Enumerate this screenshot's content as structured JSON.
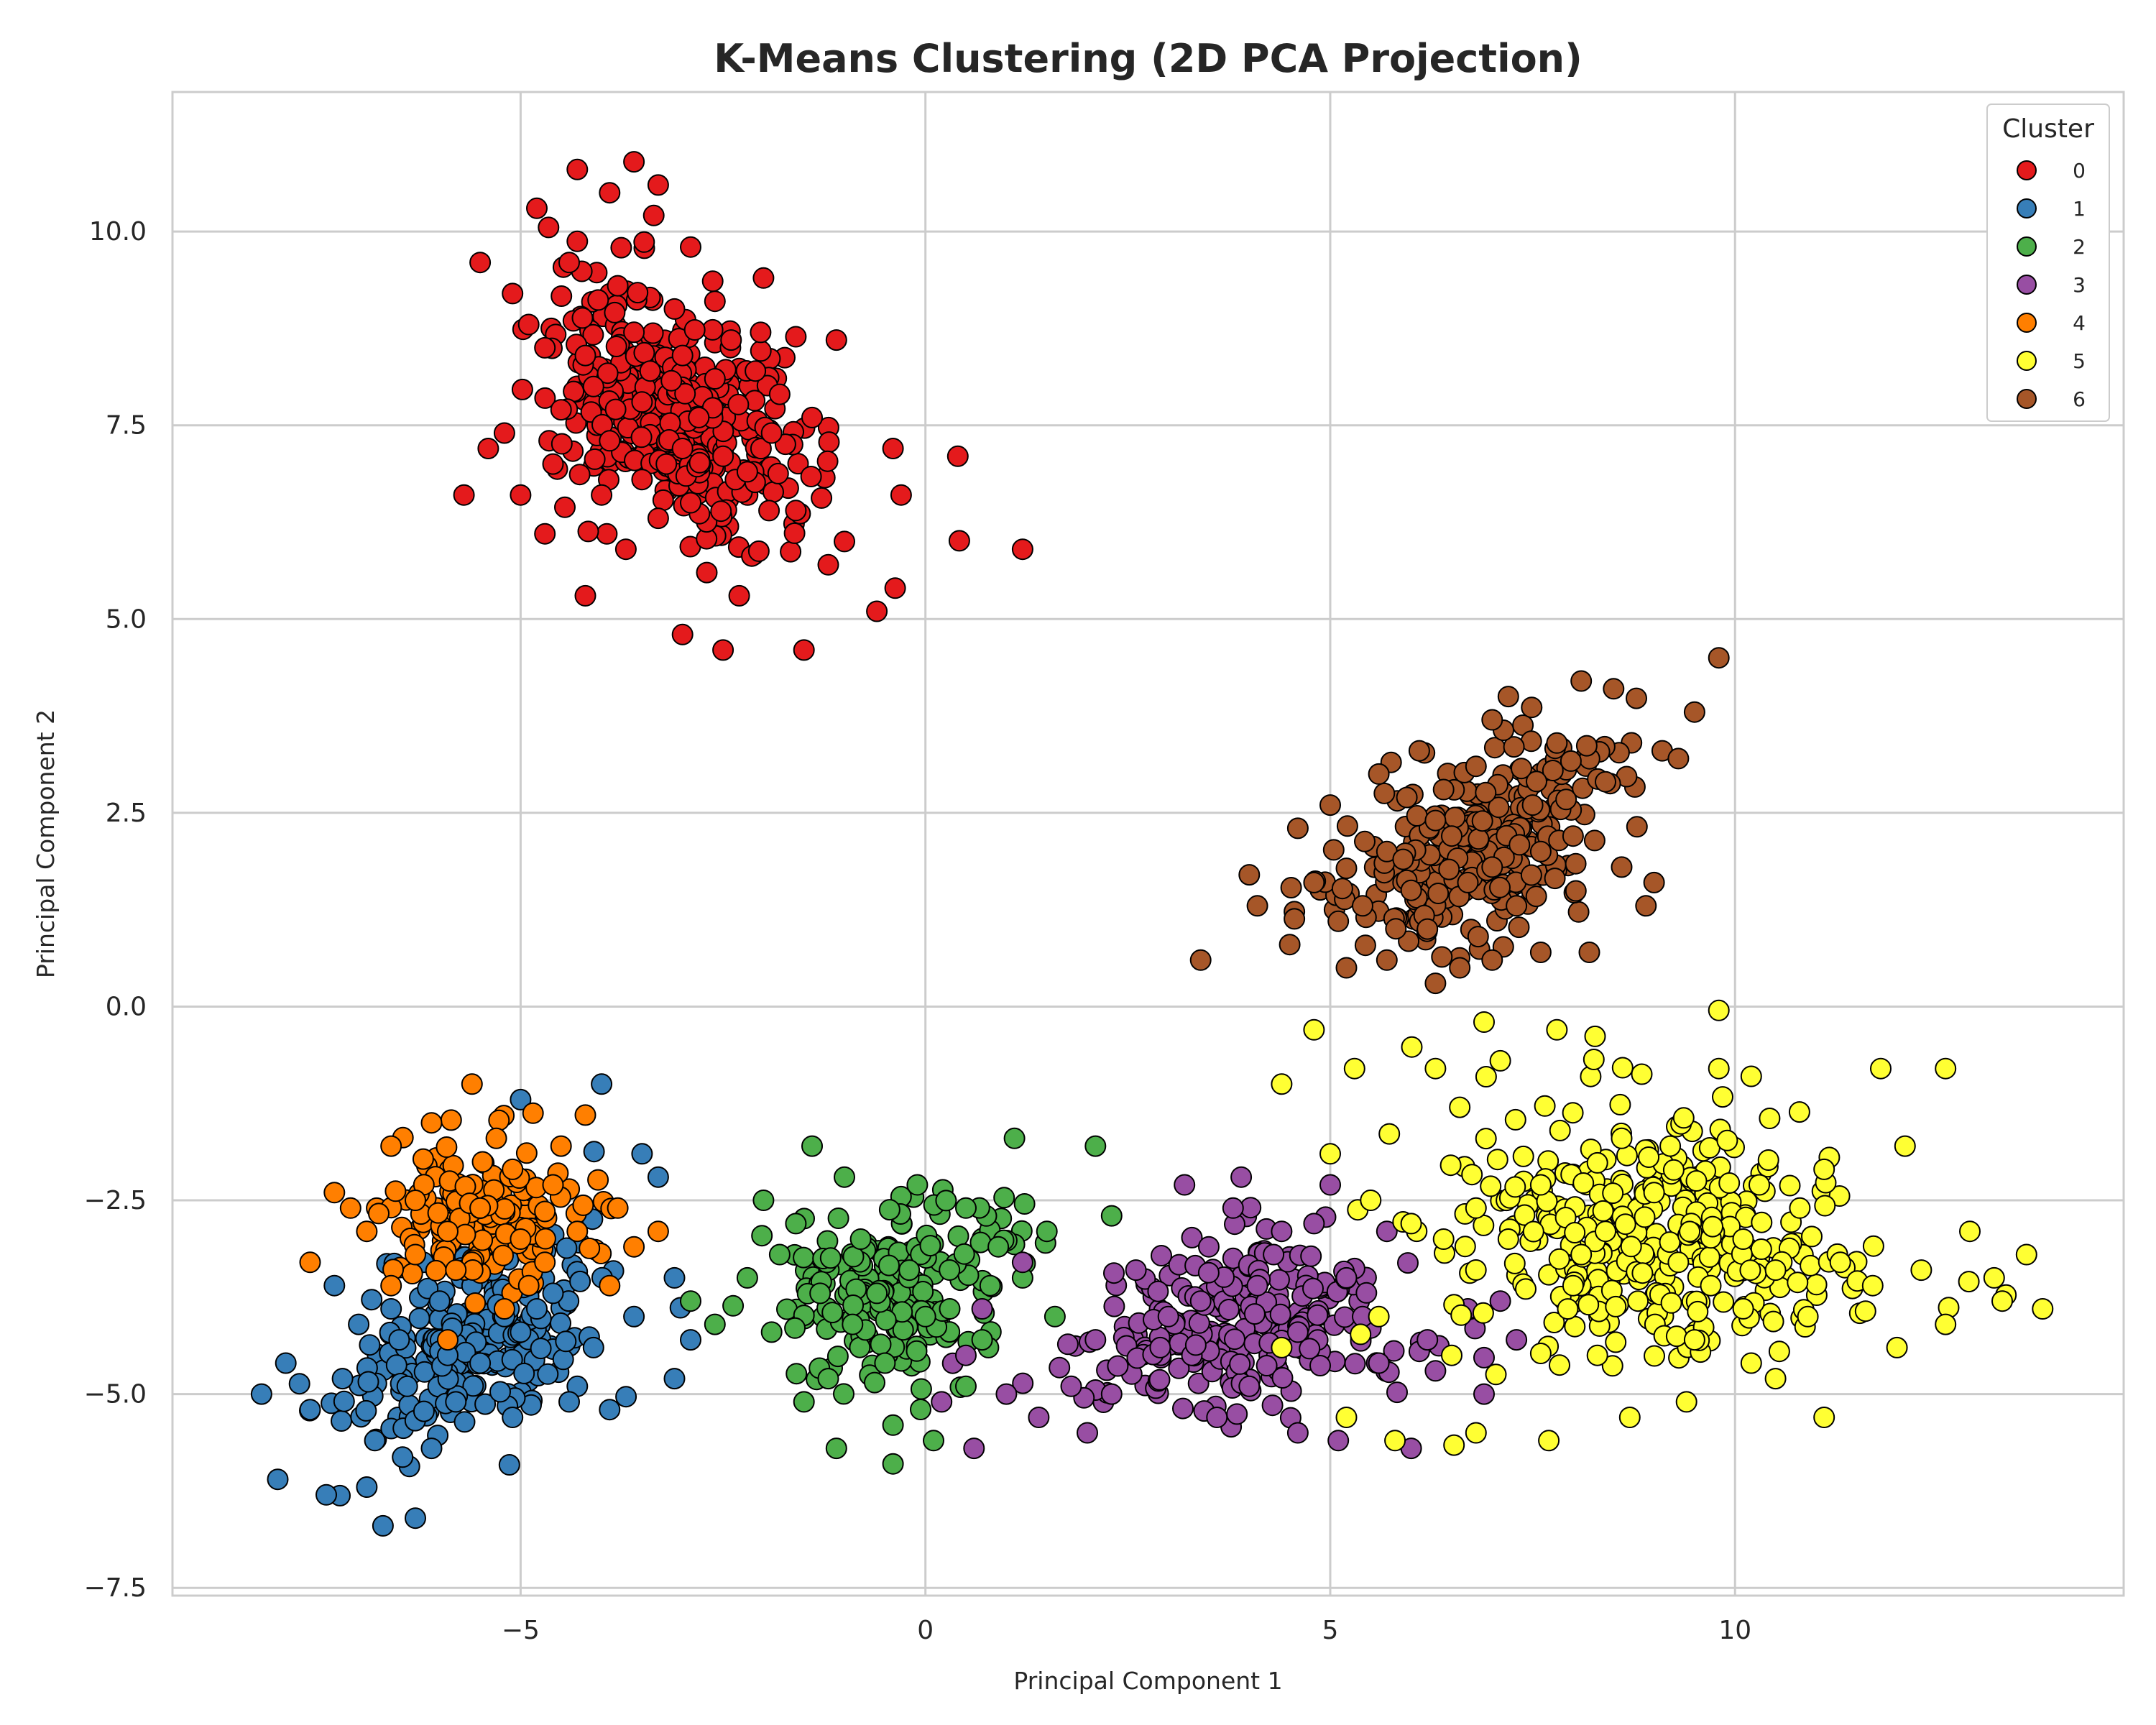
{
  "chart_data": {
    "type": "scatter",
    "title": "K-Means Clustering (2D PCA Projection)",
    "xlabel": "Principal Component 1",
    "ylabel": "Principal Component 2",
    "xlim": [
      -9.3,
      14.8
    ],
    "ylim": [
      -7.6,
      11.8
    ],
    "xticks": [
      -5,
      0,
      5,
      10
    ],
    "xtick_labels": [
      "−5",
      "0",
      "5",
      "10"
    ],
    "yticks": [
      -7.5,
      -5.0,
      -2.5,
      0.0,
      2.5,
      5.0,
      7.5,
      10.0
    ],
    "ytick_labels": [
      "−7.5",
      "−5.0",
      "−2.5",
      "0.0",
      "2.5",
      "5.0",
      "7.5",
      "10.0"
    ],
    "grid": true,
    "legend": {
      "title": "Cluster",
      "placement": "top-right"
    },
    "series": [
      {
        "name": "0",
        "color": "#e41a1c",
        "points": [
          [
            -3.5,
            7.8
          ],
          [
            -4.2,
            8.4
          ],
          [
            -3.0,
            7.2
          ],
          [
            -2.6,
            8.1
          ],
          [
            -4.6,
            7.0
          ],
          [
            -3.8,
            9.3
          ],
          [
            -2.2,
            6.9
          ],
          [
            -4.9,
            8.8
          ],
          [
            -3.3,
            6.3
          ],
          [
            -2.8,
            7.6
          ],
          [
            -4.0,
            6.6
          ],
          [
            -3.6,
            8.7
          ],
          [
            -5.2,
            7.4
          ],
          [
            -2.4,
            8.6
          ],
          [
            -3.1,
            9.0
          ],
          [
            -4.4,
            9.6
          ],
          [
            -1.9,
            7.4
          ],
          [
            -3.9,
            10.5
          ],
          [
            -3.3,
            10.6
          ],
          [
            -4.3,
            10.8
          ],
          [
            -3.6,
            10.9
          ],
          [
            -2.9,
            9.8
          ],
          [
            -4.8,
            10.3
          ],
          [
            -5.5,
            9.6
          ],
          [
            -5.1,
            9.2
          ],
          [
            -5.7,
            6.6
          ],
          [
            -5.4,
            7.2
          ],
          [
            -4.7,
            6.1
          ],
          [
            -4.2,
            5.3
          ],
          [
            -3.0,
            4.8
          ],
          [
            -2.5,
            4.6
          ],
          [
            -1.5,
            4.6
          ],
          [
            -1.0,
            6.0
          ],
          [
            -0.6,
            5.1
          ],
          [
            -0.4,
            7.2
          ],
          [
            -0.3,
            6.6
          ],
          [
            0.4,
            7.1
          ],
          [
            1.2,
            5.9
          ],
          [
            -1.1,
            8.6
          ],
          [
            -1.8,
            7.9
          ],
          [
            -2.0,
            9.4
          ],
          [
            -3.7,
            5.9
          ],
          [
            -2.7,
            5.6
          ],
          [
            -1.6,
            6.4
          ],
          [
            -3.4,
            8.2
          ],
          [
            -2.1,
            8.2
          ],
          [
            -4.5,
            7.7
          ],
          [
            -3.2,
            7.0
          ],
          [
            -2.5,
            7.1
          ],
          [
            -3.9,
            7.3
          ],
          [
            -1.4,
            7.6
          ],
          [
            -2.9,
            6.5
          ],
          [
            -4.1,
            8.0
          ],
          [
            -3.5,
            6.8
          ],
          [
            -2.3,
            5.3
          ],
          [
            -1.2,
            5.7
          ],
          [
            -4.7,
            8.5
          ],
          [
            -5.0,
            6.6
          ],
          [
            -3.0,
            8.4
          ],
          [
            -2.6,
            9.1
          ]
        ]
      },
      {
        "name": "1",
        "color": "#377eb8",
        "points": [
          [
            -6.5,
            -4.3
          ],
          [
            -7.2,
            -4.8
          ],
          [
            -6.0,
            -3.8
          ],
          [
            -5.5,
            -4.6
          ],
          [
            -7.6,
            -5.2
          ],
          [
            -6.8,
            -5.6
          ],
          [
            -5.0,
            -4.2
          ],
          [
            -6.2,
            -3.3
          ],
          [
            -4.6,
            -3.7
          ],
          [
            -7.9,
            -4.6
          ],
          [
            -5.8,
            -5.1
          ],
          [
            -6.9,
            -6.2
          ],
          [
            -4.3,
            -4.9
          ],
          [
            -3.6,
            -4.0
          ],
          [
            -3.1,
            -3.5
          ],
          [
            -3.3,
            -2.2
          ],
          [
            -3.5,
            -1.9
          ],
          [
            -4.0,
            -1.0
          ],
          [
            -5.0,
            -1.2
          ],
          [
            -8.2,
            -5.0
          ],
          [
            -8.0,
            -6.1
          ],
          [
            -6.7,
            -6.7
          ],
          [
            -6.3,
            -6.6
          ],
          [
            -7.4,
            -6.3
          ],
          [
            -5.1,
            -5.3
          ],
          [
            -4.4,
            -5.1
          ],
          [
            -3.9,
            -5.2
          ],
          [
            -3.1,
            -4.8
          ],
          [
            -2.9,
            -4.3
          ],
          [
            -5.6,
            -3.6
          ],
          [
            -6.4,
            -4.9
          ],
          [
            -7.0,
            -4.1
          ],
          [
            -5.3,
            -3.0
          ],
          [
            -4.8,
            -3.9
          ],
          [
            -6.1,
            -5.7
          ],
          [
            -7.3,
            -3.6
          ],
          [
            -4.1,
            -4.4
          ],
          [
            -5.9,
            -4.5
          ],
          [
            -6.6,
            -3.9
          ],
          [
            -5.2,
            -4.0
          ]
        ]
      },
      {
        "name": "2",
        "color": "#4daf4a",
        "points": [
          [
            -0.2,
            -3.4
          ],
          [
            0.3,
            -3.9
          ],
          [
            -0.8,
            -3.0
          ],
          [
            -1.3,
            -3.7
          ],
          [
            0.7,
            -4.3
          ],
          [
            -0.5,
            -4.6
          ],
          [
            0.9,
            -3.1
          ],
          [
            -1.6,
            -2.8
          ],
          [
            -0.1,
            -2.3
          ],
          [
            1.2,
            -3.5
          ],
          [
            -1.9,
            -4.2
          ],
          [
            -2.2,
            -3.5
          ],
          [
            -2.0,
            -2.5
          ],
          [
            -1.4,
            -1.8
          ],
          [
            1.1,
            -1.7
          ],
          [
            2.1,
            -1.8
          ],
          [
            2.3,
            -2.7
          ],
          [
            1.6,
            -4.0
          ],
          [
            0.5,
            -4.9
          ],
          [
            -0.4,
            -5.4
          ],
          [
            -1.1,
            -5.7
          ],
          [
            -0.4,
            -5.9
          ],
          [
            -1.5,
            -5.1
          ],
          [
            0.1,
            -5.6
          ],
          [
            -2.6,
            -4.1
          ],
          [
            -2.9,
            -3.8
          ],
          [
            -1.0,
            -2.2
          ],
          [
            0.5,
            -2.6
          ],
          [
            -0.6,
            -3.7
          ],
          [
            1.5,
            -2.9
          ],
          [
            -1.8,
            -3.2
          ],
          [
            0.0,
            -4.0
          ],
          [
            -0.9,
            -4.1
          ],
          [
            0.8,
            -3.6
          ],
          [
            -1.2,
            -4.8
          ]
        ]
      },
      {
        "name": "3",
        "color": "#984ea3",
        "points": [
          [
            4.1,
            -3.6
          ],
          [
            3.5,
            -3.1
          ],
          [
            4.6,
            -4.2
          ],
          [
            3.0,
            -4.0
          ],
          [
            5.2,
            -3.5
          ],
          [
            3.8,
            -2.6
          ],
          [
            4.4,
            -2.9
          ],
          [
            2.6,
            -3.4
          ],
          [
            5.6,
            -4.6
          ],
          [
            4.0,
            -4.9
          ],
          [
            6.2,
            -4.3
          ],
          [
            6.7,
            -3.9
          ],
          [
            6.3,
            -4.7
          ],
          [
            6.9,
            -5.0
          ],
          [
            5.1,
            -5.6
          ],
          [
            4.6,
            -5.5
          ],
          [
            3.6,
            -5.3
          ],
          [
            2.3,
            -5.0
          ],
          [
            1.8,
            -4.9
          ],
          [
            1.4,
            -5.3
          ],
          [
            1.0,
            -5.0
          ],
          [
            0.6,
            -5.7
          ],
          [
            0.2,
            -5.1
          ],
          [
            0.5,
            -4.5
          ],
          [
            0.7,
            -3.9
          ],
          [
            2.1,
            -4.3
          ],
          [
            2.9,
            -4.4
          ],
          [
            3.2,
            -2.3
          ],
          [
            3.9,
            -2.2
          ],
          [
            4.8,
            -2.8
          ],
          [
            5.0,
            -2.3
          ],
          [
            5.7,
            -2.9
          ],
          [
            7.1,
            -3.8
          ],
          [
            7.3,
            -4.3
          ],
          [
            6.0,
            -5.7
          ],
          [
            2.0,
            -5.5
          ],
          [
            1.2,
            -3.3
          ],
          [
            4.3,
            -3.2
          ],
          [
            3.4,
            -3.8
          ],
          [
            5.4,
            -4.0
          ]
        ]
      },
      {
        "name": "4",
        "color": "#ff7f00",
        "points": [
          [
            -5.5,
            -2.6
          ],
          [
            -5.9,
            -2.9
          ],
          [
            -5.1,
            -2.1
          ],
          [
            -4.6,
            -2.3
          ],
          [
            -6.3,
            -2.5
          ],
          [
            -4.3,
            -2.9
          ],
          [
            -5.8,
            -3.4
          ],
          [
            -4.9,
            -3.6
          ],
          [
            -5.6,
            -1.0
          ],
          [
            -4.2,
            -1.4
          ],
          [
            -6.1,
            -1.5
          ],
          [
            -6.6,
            -1.8
          ],
          [
            -7.3,
            -2.4
          ],
          [
            -7.6,
            -3.3
          ],
          [
            -3.8,
            -2.6
          ],
          [
            -3.6,
            -3.1
          ],
          [
            -3.3,
            -2.9
          ],
          [
            -4.5,
            -1.8
          ],
          [
            -5.3,
            -1.7
          ],
          [
            -6.9,
            -2.9
          ],
          [
            -6.3,
            -3.2
          ],
          [
            -7.1,
            -2.6
          ],
          [
            -5.0,
            -3.0
          ],
          [
            -5.9,
            -4.3
          ],
          [
            -4.7,
            -3.3
          ],
          [
            -3.9,
            -3.6
          ],
          [
            -6.6,
            -3.6
          ],
          [
            -5.2,
            -3.9
          ]
        ]
      },
      {
        "name": "5",
        "color": "#ffff33",
        "points": [
          [
            9.3,
            -3.3
          ],
          [
            8.8,
            -3.8
          ],
          [
            10.1,
            -3.0
          ],
          [
            9.7,
            -3.6
          ],
          [
            8.4,
            -2.9
          ],
          [
            10.5,
            -3.4
          ],
          [
            8.0,
            -3.6
          ],
          [
            9.0,
            -2.4
          ],
          [
            10.8,
            -2.6
          ],
          [
            7.6,
            -2.3
          ],
          [
            11.3,
            -3.3
          ],
          [
            9.5,
            -4.3
          ],
          [
            8.3,
            -4.5
          ],
          [
            10.2,
            -4.6
          ],
          [
            11.1,
            -2.1
          ],
          [
            7.2,
            -3.0
          ],
          [
            6.8,
            -2.6
          ],
          [
            6.4,
            -3.0
          ],
          [
            6.0,
            -2.8
          ],
          [
            5.5,
            -2.5
          ],
          [
            5.0,
            -1.9
          ],
          [
            4.4,
            -1.0
          ],
          [
            4.8,
            -0.3
          ],
          [
            5.3,
            -0.8
          ],
          [
            6.3,
            -0.8
          ],
          [
            6.6,
            -1.3
          ],
          [
            6.9,
            -0.2
          ],
          [
            7.1,
            -0.7
          ],
          [
            7.8,
            -0.3
          ],
          [
            9.8,
            -0.05
          ],
          [
            9.8,
            -0.8
          ],
          [
            10.2,
            -0.9
          ],
          [
            11.8,
            -0.8
          ],
          [
            12.6,
            -0.8
          ],
          [
            12.1,
            -1.8
          ],
          [
            12.9,
            -2.9
          ],
          [
            13.2,
            -3.5
          ],
          [
            13.3,
            -3.8
          ],
          [
            13.6,
            -3.2
          ],
          [
            13.8,
            -3.9
          ],
          [
            12.6,
            -4.1
          ],
          [
            12.0,
            -4.4
          ],
          [
            11.1,
            -5.3
          ],
          [
            10.5,
            -4.8
          ],
          [
            9.4,
            -5.1
          ],
          [
            8.7,
            -5.3
          ],
          [
            7.7,
            -5.6
          ],
          [
            6.8,
            -5.5
          ],
          [
            5.8,
            -5.6
          ],
          [
            5.2,
            -5.3
          ],
          [
            4.4,
            -4.4
          ],
          [
            5.6,
            -4.0
          ],
          [
            6.5,
            -4.5
          ],
          [
            11.7,
            -3.6
          ],
          [
            10.3,
            -2.3
          ],
          [
            9.2,
            -1.8
          ],
          [
            8.6,
            -1.7
          ],
          [
            10.9,
            -4.0
          ],
          [
            8.1,
            -3.2
          ],
          [
            12.3,
            -3.4
          ]
        ]
      },
      {
        "name": "6",
        "color": "#a65628",
        "points": [
          [
            6.5,
            2.2
          ],
          [
            7.0,
            1.8
          ],
          [
            6.0,
            1.5
          ],
          [
            5.7,
            2.0
          ],
          [
            7.5,
            2.6
          ],
          [
            6.8,
            3.1
          ],
          [
            6.2,
            1.0
          ],
          [
            7.3,
            1.3
          ],
          [
            5.4,
            1.3
          ],
          [
            8.0,
            2.2
          ],
          [
            7.8,
            3.4
          ],
          [
            6.4,
            2.8
          ],
          [
            5.1,
            1.1
          ],
          [
            4.8,
            1.6
          ],
          [
            4.1,
            1.3
          ],
          [
            3.4,
            0.6
          ],
          [
            4.0,
            1.7
          ],
          [
            4.6,
            2.3
          ],
          [
            5.6,
            3.0
          ],
          [
            6.1,
            3.3
          ],
          [
            7.0,
            3.7
          ],
          [
            7.2,
            4.0
          ],
          [
            8.1,
            4.2
          ],
          [
            8.5,
            4.1
          ],
          [
            9.1,
            3.3
          ],
          [
            9.5,
            3.8
          ],
          [
            9.8,
            4.5
          ],
          [
            9.3,
            3.2
          ],
          [
            9.0,
            1.6
          ],
          [
            8.9,
            1.3
          ],
          [
            8.6,
            1.8
          ],
          [
            8.2,
            0.7
          ],
          [
            7.6,
            0.7
          ],
          [
            7.0,
            0.6
          ],
          [
            6.6,
            0.5
          ],
          [
            6.3,
            0.3
          ],
          [
            5.7,
            0.6
          ],
          [
            5.2,
            0.5
          ],
          [
            4.5,
            0.8
          ],
          [
            5.9,
            1.9
          ],
          [
            6.7,
            1.6
          ],
          [
            7.6,
            2.0
          ],
          [
            6.3,
            2.4
          ],
          [
            5.0,
            2.6
          ],
          [
            8.4,
            2.9
          ]
        ]
      }
    ]
  }
}
